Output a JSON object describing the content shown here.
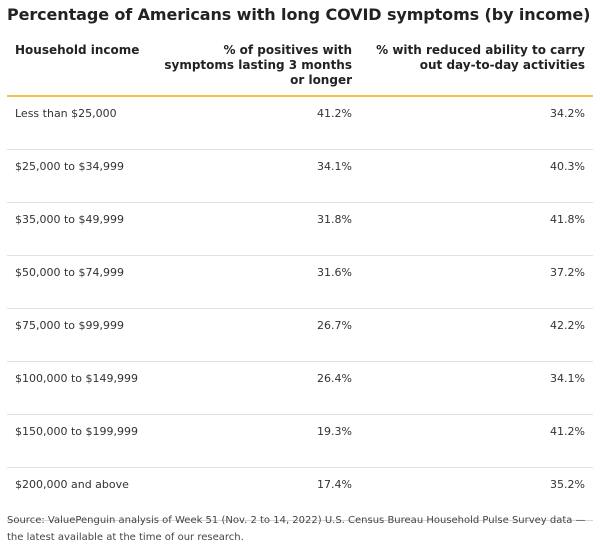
{
  "title": "Percentage of Americans with long COVID symptoms (by income)",
  "chart_data": {
    "type": "table",
    "columns": [
      "Household income",
      "% of positives with symptoms lasting 3 months or longer",
      "% with reduced ability to carry out day-to-day activities"
    ],
    "rows": [
      [
        "Less than $25,000",
        "41.2%",
        "34.2%"
      ],
      [
        "$25,000 to $34,999",
        "34.1%",
        "40.3%"
      ],
      [
        "$35,000 to $49,999",
        "31.8%",
        "41.8%"
      ],
      [
        "$50,000 to $74,999",
        "31.6%",
        "37.2%"
      ],
      [
        "$75,000 to $99,999",
        "26.7%",
        "42.2%"
      ],
      [
        "$100,000 to $149,999",
        "26.4%",
        "34.1%"
      ],
      [
        "$150,000 to $199,999",
        "19.3%",
        "41.2%"
      ],
      [
        "$200,000 and above",
        "17.4%",
        "35.2%"
      ]
    ]
  },
  "source": "Source: ValuePenguin analysis of Week 51 (Nov. 2 to 14, 2022) U.S. Census Bureau Household Pulse Survey data — the latest available at the time of our research.",
  "colors": {
    "header_rule": "#f2c14e",
    "row_rule": "#e1e1e1"
  }
}
